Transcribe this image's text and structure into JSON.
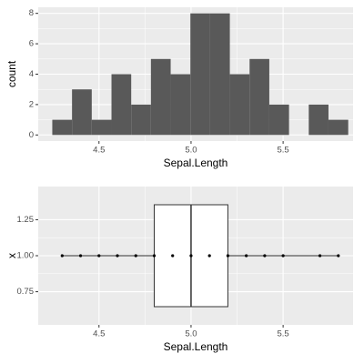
{
  "chart_data": [
    {
      "type": "histogram",
      "x_label": "Sepal.Length",
      "y_label": "count",
      "bins": [
        4.2464,
        4.3536,
        4.4607,
        4.5679,
        4.675,
        4.7821,
        4.8893,
        4.9964,
        5.1036,
        5.2107,
        5.3179,
        5.425,
        5.5321,
        5.6393,
        5.7464,
        5.8536
      ],
      "values": [
        1,
        3,
        1,
        4,
        2,
        5,
        4,
        8,
        8,
        4,
        5,
        2,
        0,
        2,
        1
      ],
      "color": "#595959",
      "xlim": [
        4.17,
        5.88
      ],
      "xticks": [
        4.5,
        {
          "value": 5,
          "label": "5.0"
        },
        5.5
      ],
      "ylim": [
        -0.4,
        8.4
      ],
      "yticks": [
        0,
        2,
        4,
        6,
        8
      ],
      "grid": true
    },
    {
      "type": "boxplot",
      "x_label": "Sepal.Length",
      "y_label": "x",
      "box": {
        "position": 1,
        "min": 4.3,
        "q1": 4.8,
        "median": 5,
        "q3": 5.2,
        "max": 5.8
      },
      "points": {
        "x": [
          4.3,
          4.4,
          4.5,
          4.6,
          4.7,
          4.8,
          4.9,
          5,
          5.1,
          5.2,
          5.3,
          5.4,
          5.5,
          5.7,
          5.8
        ],
        "y": [
          1,
          1,
          1,
          1,
          1,
          1,
          1,
          1,
          1,
          1,
          1,
          1,
          1,
          1,
          1
        ]
      },
      "xlim": [
        4.17,
        5.88
      ],
      "xticks": [
        4.5,
        {
          "value": 5,
          "label": "5.0"
        },
        5.5
      ],
      "ylim": [
        0.52,
        1.48
      ],
      "yticks": [
        {
          "value": 0.75,
          "label": "0.75"
        },
        {
          "value": 1,
          "label": "1.00"
        },
        {
          "value": 1.25,
          "label": "1.25"
        }
      ],
      "grid": true
    }
  ]
}
